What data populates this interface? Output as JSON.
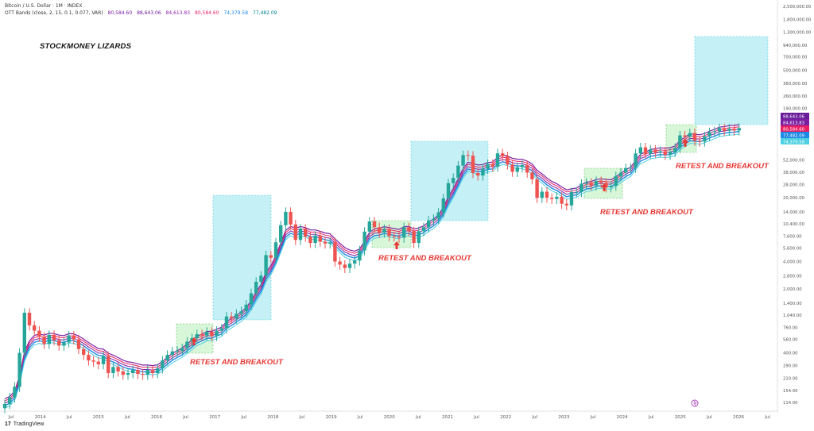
{
  "header": {
    "line1": "Bitcoin / U.S. Dollar · 1M · INDEX",
    "line2_prefix": "OTT Bands (close, 2, 15, 0.1, 0.077, VAR)",
    "values": [
      "80,584.60",
      "88,643.06",
      "84,613.83",
      "80,584.60",
      "74,379.58",
      "77,482.09"
    ]
  },
  "brand": "STOCKMONEY LIZARDS",
  "footer_logo": "TradingView",
  "colors": {
    "up": "#26a69a",
    "down": "#ef5350",
    "band_purple": "#7b1fa2",
    "band_pink": "#e91e63",
    "band_blue": "#1e88e5",
    "band_cyan": "#4dd0e1",
    "retest_fill": "#c8f2c8",
    "target_fill": "#b2ebf2",
    "annotation": "#e53935"
  },
  "chart_data": {
    "type": "candlestick",
    "title": "Bitcoin / U.S. Dollar · 1M · INDEX",
    "y_scale": "log",
    "ylim": [
      110,
      2600000
    ],
    "y_ticks": [
      "2,500,000.00",
      "1,800,000.00",
      "1,300,000.00",
      "940,000.00",
      "700,000.00",
      "500,000.00",
      "360,000.00",
      "260,000.00",
      "190,000.00",
      "88,643.06",
      "84,613.83",
      "80,584.60",
      "77,482.09",
      "74,379.58",
      "52,000.00",
      "38,000.00",
      "28,000.00",
      "20,000.00",
      "14,000.00",
      "10,400.00",
      "7,600.00",
      "5,600.00",
      "4,000.00",
      "2,800.00",
      "2,000.00",
      "1,400.00",
      "1,040.00",
      "760.00",
      "560.00",
      "400.00",
      "290.00",
      "210.00",
      "154.00",
      "114.00"
    ],
    "x_ticks": [
      "Jul",
      "2014",
      "Jul",
      "2015",
      "Jul",
      "2016",
      "Jul",
      "2017",
      "Jul",
      "2018",
      "Jul",
      "2019",
      "Jul",
      "2020",
      "Jul",
      "2021",
      "Jul",
      "2022",
      "Jul",
      "2023",
      "Jul",
      "2024",
      "Jul",
      "2025",
      "Jul",
      "2026",
      "Jul"
    ],
    "legend": {
      "label": "OTT Bands (close, 2, 15, 0.1, 0.077, VAR)",
      "values": [
        "80,584.60",
        "88,643.06",
        "84,613.83",
        "80,584.60",
        "74,379.58",
        "77,482.09"
      ]
    },
    "annotations": [
      "RETEST AND BREAKOUT",
      "RETEST AND BREAKOUT",
      "RETEST AND BREAKOUT",
      "RETEST AND BREAKOUT"
    ],
    "closes": [
      110,
      130,
      170,
      400,
      1100,
      800,
      700,
      600,
      500,
      630,
      550,
      480,
      520,
      620,
      560,
      440,
      380,
      330,
      320,
      300,
      370,
      240,
      280,
      250,
      230,
      240,
      260,
      235,
      230,
      260,
      240,
      270,
      330,
      380,
      415,
      420,
      450,
      530,
      580,
      640,
      620,
      680,
      610,
      700,
      740,
      1000,
      950,
      1070,
      1140,
      1350,
      1800,
      2400,
      2800,
      4700,
      4400,
      6500,
      10000,
      14000,
      10200,
      6900,
      9200,
      7500,
      6400,
      7700,
      6600,
      6300,
      6500,
      4000,
      3700,
      3400,
      3800,
      4100,
      5300,
      8500,
      11000,
      9500,
      8300,
      9100,
      7600,
      7500,
      7300,
      9500,
      8600,
      6400,
      8600,
      9500,
      11300,
      11800,
      13800,
      19700,
      28900,
      33000,
      45000,
      58700,
      57700,
      37300,
      35000,
      41500,
      47000,
      43800,
      61300,
      57000,
      46200,
      38500,
      43200,
      45500,
      37700,
      31800,
      19900,
      23300,
      20000,
      19400,
      20500,
      17200,
      16500,
      23100,
      23100,
      28500,
      29300,
      27200,
      30500,
      29200,
      26000,
      27000,
      34500,
      37700,
      42300,
      42600,
      61100,
      71300,
      60600,
      67500,
      62700,
      64600,
      58900,
      63300,
      70300,
      96400,
      93400,
      102400,
      84300,
      82500,
      94200,
      104600,
      107100,
      115700,
      108200,
      114000,
      109000,
      116000
    ]
  }
}
